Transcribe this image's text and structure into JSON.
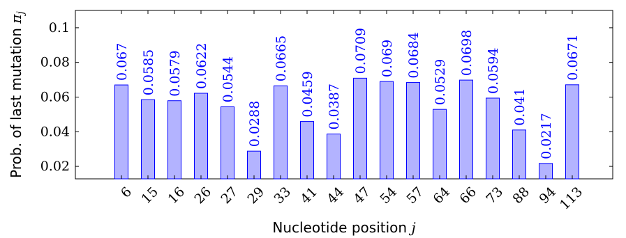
{
  "chart_data": {
    "type": "bar",
    "categories": [
      "6",
      "15",
      "16",
      "26",
      "27",
      "29",
      "33",
      "41",
      "44",
      "47",
      "54",
      "57",
      "64",
      "66",
      "73",
      "88",
      "94",
      "113"
    ],
    "values": [
      0.067,
      0.0585,
      0.0579,
      0.0622,
      0.0544,
      0.0288,
      0.0665,
      0.0459,
      0.0387,
      0.0709,
      0.069,
      0.0684,
      0.0529,
      0.0698,
      0.0594,
      0.041,
      0.0217,
      0.0671
    ],
    "data_labels": [
      "0.067",
      "0.0585",
      "0.0579",
      "0.0622",
      "0.0544",
      "0.0288",
      "0.0665",
      "0.0459",
      "0.0387",
      "0.0709",
      "0.069",
      "0.0684",
      "0.0529",
      "0.0698",
      "0.0594",
      "0.041",
      "0.0217",
      "0.0671"
    ],
    "yticks": [
      0.02,
      0.04,
      0.06,
      0.08,
      0.1
    ],
    "ytick_labels": [
      "0.02",
      "0.04",
      "0.06",
      "0.08",
      "0.1"
    ],
    "ylim": [
      0.0128,
      0.11
    ],
    "xlabel": "Nucleotide position",
    "xlabel_var": "j",
    "ylabel": "Prob. of last mutation",
    "ylabel_var": "π",
    "ylabel_sub": "j",
    "grid": false,
    "legend": "none",
    "bar_fill": "#b3b3ff",
    "bar_stroke": "#0000ff",
    "label_color": "#0000ff"
  }
}
